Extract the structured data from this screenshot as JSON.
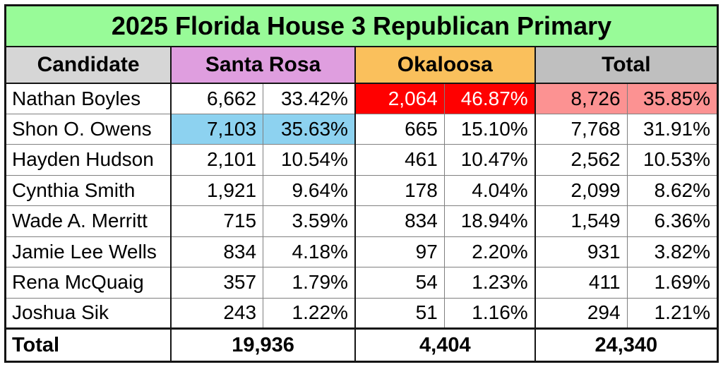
{
  "chart_data": {
    "type": "table",
    "title": "2025 Florida House 3 Republican Primary",
    "columns": {
      "candidate": "Candidate",
      "santa_rosa": "Santa Rosa",
      "okaloosa": "Okaloosa",
      "total": "Total"
    },
    "rows": [
      {
        "name": "Nathan Boyles",
        "santa_rosa": {
          "votes": "6,662",
          "pct": "33.42%"
        },
        "okaloosa": {
          "votes": "2,064",
          "pct": "46.87%",
          "highlight": "red"
        },
        "total": {
          "votes": "8,726",
          "pct": "35.85%",
          "highlight": "salmon"
        }
      },
      {
        "name": "Shon O. Owens",
        "santa_rosa": {
          "votes": "7,103",
          "pct": "35.63%",
          "highlight": "blue"
        },
        "okaloosa": {
          "votes": "665",
          "pct": "15.10%"
        },
        "total": {
          "votes": "7,768",
          "pct": "31.91%"
        }
      },
      {
        "name": "Hayden Hudson",
        "santa_rosa": {
          "votes": "2,101",
          "pct": "10.54%"
        },
        "okaloosa": {
          "votes": "461",
          "pct": "10.47%"
        },
        "total": {
          "votes": "2,562",
          "pct": "10.53%"
        }
      },
      {
        "name": "Cynthia Smith",
        "santa_rosa": {
          "votes": "1,921",
          "pct": "9.64%"
        },
        "okaloosa": {
          "votes": "178",
          "pct": "4.04%"
        },
        "total": {
          "votes": "2,099",
          "pct": "8.62%"
        }
      },
      {
        "name": "Wade A. Merritt",
        "santa_rosa": {
          "votes": "715",
          "pct": "3.59%"
        },
        "okaloosa": {
          "votes": "834",
          "pct": "18.94%"
        },
        "total": {
          "votes": "1,549",
          "pct": "6.36%"
        }
      },
      {
        "name": "Jamie Lee Wells",
        "santa_rosa": {
          "votes": "834",
          "pct": "4.18%"
        },
        "okaloosa": {
          "votes": "97",
          "pct": "2.20%"
        },
        "total": {
          "votes": "931",
          "pct": "3.82%"
        }
      },
      {
        "name": "Rena McQuaig",
        "santa_rosa": {
          "votes": "357",
          "pct": "1.79%"
        },
        "okaloosa": {
          "votes": "54",
          "pct": "1.23%"
        },
        "total": {
          "votes": "411",
          "pct": "1.69%"
        }
      },
      {
        "name": "Joshua Sik",
        "santa_rosa": {
          "votes": "243",
          "pct": "1.22%"
        },
        "okaloosa": {
          "votes": "51",
          "pct": "1.16%"
        },
        "total": {
          "votes": "294",
          "pct": "1.21%"
        }
      }
    ],
    "totals": {
      "label": "Total",
      "santa_rosa": "19,936",
      "okaloosa": "4,404",
      "total": "24,340"
    }
  },
  "colors": {
    "title_bg": "#98FB98",
    "hdr_candidate_bg": "#D6D6D6",
    "hdr_santa_rosa_bg": "#DF9EDF",
    "hdr_okaloosa_bg": "#FAC05C",
    "hdr_total_bg": "#BFBFBF",
    "highlights": {
      "red": {
        "bg": "#FF0000",
        "text": "#FFFFFF"
      },
      "salmon": {
        "bg": "#FC9292",
        "text": "#000000"
      },
      "blue": {
        "bg": "#8DD2F0",
        "text": "#000000"
      }
    }
  }
}
